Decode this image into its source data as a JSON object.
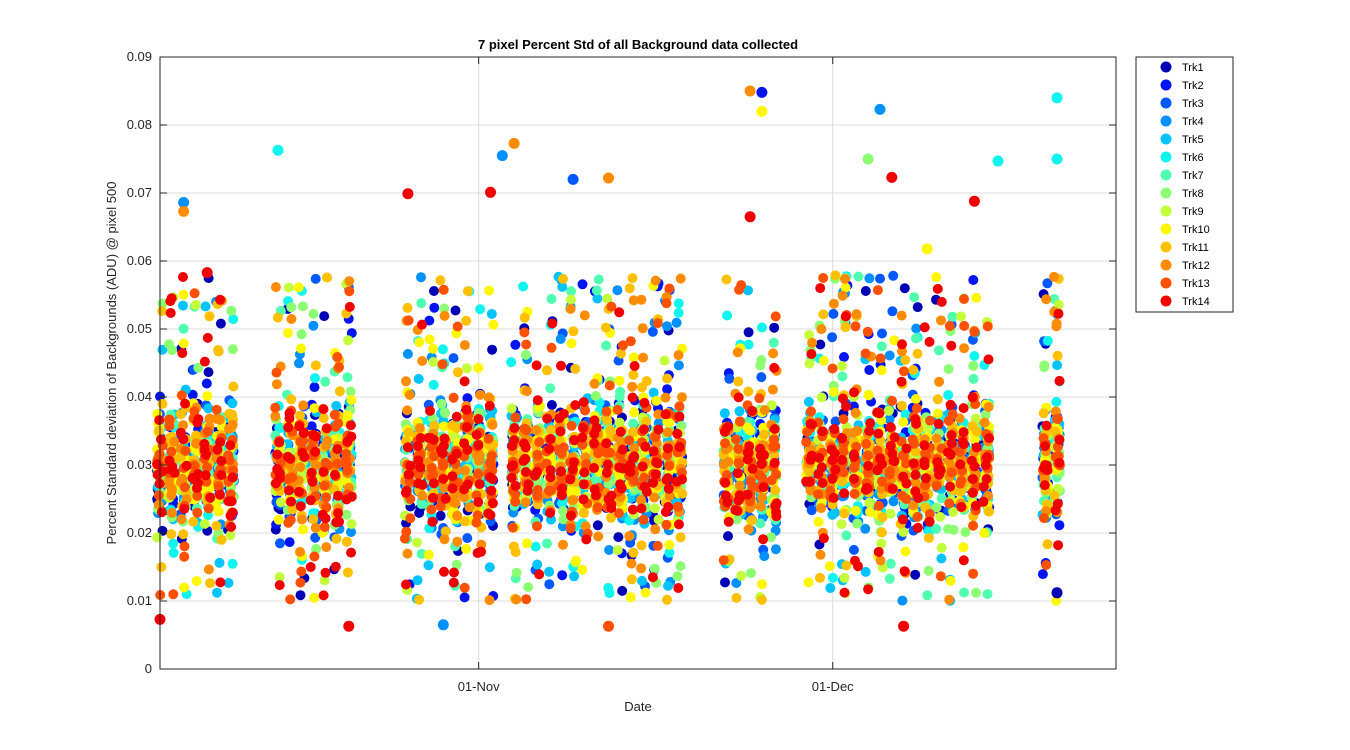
{
  "chart_data": {
    "type": "scatter",
    "title": "7 pixel Percent Std of all Background data collected",
    "xlabel": "Date",
    "ylabel": "Percent Standard deviation of Backgrounds (ADU) @ pixel 500",
    "x_axis": {
      "kind": "date",
      "range": [
        "2023-10-05",
        "2023-12-25"
      ],
      "ticks": [
        {
          "date": "2023-11-01",
          "label": "01-Nov"
        },
        {
          "date": "2023-12-01",
          "label": "01-Dec"
        }
      ]
    },
    "y_axis": {
      "range": [
        0,
        0.09
      ],
      "ticks": [
        0,
        0.01,
        0.02,
        0.03,
        0.04,
        0.05,
        0.06,
        0.07,
        0.08,
        0.09
      ],
      "tick_labels": [
        "0",
        "0.01",
        "0.02",
        "0.03",
        "0.04",
        "0.05",
        "0.06",
        "0.07",
        "0.08",
        "0.09"
      ]
    },
    "grid": true,
    "legend_position": "outside-top-right",
    "series": [
      {
        "name": "Trk1",
        "color": "#0000b4"
      },
      {
        "name": "Trk2",
        "color": "#0014f0"
      },
      {
        "name": "Trk3",
        "color": "#0058ff"
      },
      {
        "name": "Trk4",
        "color": "#0090ff"
      },
      {
        "name": "Trk5",
        "color": "#00c4ff"
      },
      {
        "name": "Trk6",
        "color": "#10f4ef"
      },
      {
        "name": "Trk7",
        "color": "#50ffaf"
      },
      {
        "name": "Trk8",
        "color": "#8cff73"
      },
      {
        "name": "Trk9",
        "color": "#c4ff3b"
      },
      {
        "name": "Trk10",
        "color": "#fff800"
      },
      {
        "name": "Trk11",
        "color": "#ffc000"
      },
      {
        "name": "Trk12",
        "color": "#ff8c00"
      },
      {
        "name": "Trk13",
        "color": "#ff5000"
      },
      {
        "name": "Trk14",
        "color": "#f00000"
      }
    ],
    "observation_dates": [
      "2023-10-05",
      "2023-10-06",
      "2023-10-07",
      "2023-10-08",
      "2023-10-09",
      "2023-10-10",
      "2023-10-11",
      "2023-10-15",
      "2023-10-16",
      "2023-10-17",
      "2023-10-18",
      "2023-10-19",
      "2023-10-20",
      "2023-10-21",
      "2023-10-26",
      "2023-10-27",
      "2023-10-28",
      "2023-10-29",
      "2023-10-30",
      "2023-10-31",
      "2023-11-01",
      "2023-11-02",
      "2023-11-04",
      "2023-11-05",
      "2023-11-06",
      "2023-11-07",
      "2023-11-08",
      "2023-11-09",
      "2023-11-10",
      "2023-11-11",
      "2023-11-12",
      "2023-11-13",
      "2023-11-14",
      "2023-11-15",
      "2023-11-16",
      "2023-11-17",
      "2023-11-18",
      "2023-11-22",
      "2023-11-23",
      "2023-11-24",
      "2023-11-25",
      "2023-11-26",
      "2023-11-29",
      "2023-11-30",
      "2023-12-01",
      "2023-12-02",
      "2023-12-03",
      "2023-12-04",
      "2023-12-05",
      "2023-12-06",
      "2023-12-07",
      "2023-12-08",
      "2023-12-09",
      "2023-12-10",
      "2023-12-11",
      "2023-12-12",
      "2023-12-13",
      "2023-12-14",
      "2023-12-19",
      "2023-12-20"
    ],
    "value_distribution": {
      "typical_range": [
        0.01,
        0.05
      ],
      "dense_core": [
        0.02,
        0.04
      ]
    },
    "outliers": [
      {
        "date": "2023-11-24",
        "series": "Trk12",
        "y": 0.085
      },
      {
        "date": "2023-11-25",
        "series": "Trk2",
        "y": 0.0848
      },
      {
        "date": "2023-11-25",
        "series": "Trk10",
        "y": 0.082
      },
      {
        "date": "2023-12-20",
        "series": "Trk6",
        "y": 0.084
      },
      {
        "date": "2023-12-05",
        "series": "Trk4",
        "y": 0.0823
      },
      {
        "date": "2023-10-15",
        "series": "Trk6",
        "y": 0.0763
      },
      {
        "date": "2023-11-04",
        "series": "Trk12",
        "y": 0.0773
      },
      {
        "date": "2023-11-03",
        "series": "Trk4",
        "y": 0.0755
      },
      {
        "date": "2023-12-20",
        "series": "Trk6",
        "y": 0.075
      },
      {
        "date": "2023-12-15",
        "series": "Trk6",
        "y": 0.0747
      },
      {
        "date": "2023-12-04",
        "series": "Trk8",
        "y": 0.075
      },
      {
        "date": "2023-11-12",
        "series": "Trk12",
        "y": 0.0722
      },
      {
        "date": "2023-12-06",
        "series": "Trk14",
        "y": 0.0723
      },
      {
        "date": "2023-11-09",
        "series": "Trk3",
        "y": 0.072
      },
      {
        "date": "2023-10-26",
        "series": "Trk14",
        "y": 0.0699
      },
      {
        "date": "2023-11-02",
        "series": "Trk14",
        "y": 0.0701
      },
      {
        "date": "2023-12-13",
        "series": "Trk14",
        "y": 0.0688
      },
      {
        "date": "2023-10-07",
        "series": "Trk4",
        "y": 0.0686
      },
      {
        "date": "2023-10-07",
        "series": "Trk12",
        "y": 0.0673
      },
      {
        "date": "2023-11-24",
        "series": "Trk14",
        "y": 0.0665
      },
      {
        "date": "2023-12-09",
        "series": "Trk10",
        "y": 0.0618
      },
      {
        "date": "2023-10-09",
        "series": "Trk14",
        "y": 0.0583
      },
      {
        "date": "2023-10-05",
        "series": "Trk14",
        "y": 0.0073
      },
      {
        "date": "2023-10-21",
        "series": "Trk14",
        "y": 0.0063
      },
      {
        "date": "2023-11-12",
        "series": "Trk13",
        "y": 0.0063
      },
      {
        "date": "2023-12-07",
        "series": "Trk14",
        "y": 0.0063
      },
      {
        "date": "2023-10-29",
        "series": "Trk4",
        "y": 0.0065
      },
      {
        "date": "2023-12-20",
        "series": "Trk1",
        "y": 0.0112
      }
    ]
  }
}
